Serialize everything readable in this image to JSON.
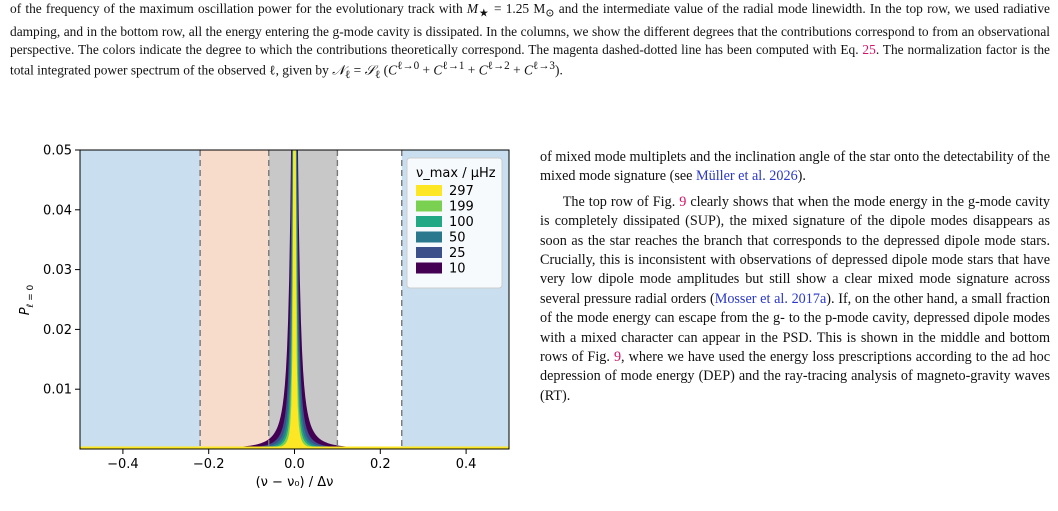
{
  "caption": {
    "line1": "of the frequency of the maximum oscillation power for the evolutionary track with ",
    "mass_sym": "M",
    "mass_eq": " = 1.25 M",
    "line1_tail": " and the intermediate value of the radial mode",
    "rest": "linewidth. In the top row, we used radiative damping, and in the bottom row, all the energy entering the g-mode cavity is dissipated. In the columns, we show the different degrees that the contributions correspond to from an observational perspective. The colors indicate the degree to which the contributions theoretically correspond. The magenta dashed-dotted line has been computed with Eq. ",
    "eq_ref": "25",
    "rest2": ". The normalization factor is the total integrated power spectrum of the observed ℓ, given by ",
    "formula": "N_ℓ = S_ℓ (C^{ℓ→0} + C^{ℓ→1} + C^{ℓ→2} + C^{ℓ→3})."
  },
  "chart_data": {
    "type": "area",
    "xlabel": "(ν − ν₀) / Δν",
    "ylabel": "P_{ℓ=0}",
    "xlim": [
      -0.5,
      0.5
    ],
    "ylim": [
      0,
      0.05
    ],
    "xticks": [
      -0.4,
      -0.2,
      0.0,
      0.2,
      0.4
    ],
    "xtick_labels": [
      "−0.4",
      "−0.2",
      "0.0",
      "0.2",
      "0.4"
    ],
    "yticks": [
      0.01,
      0.02,
      0.03,
      0.04,
      0.05
    ],
    "ytick_labels": [
      "0.01",
      "0.02",
      "0.03",
      "0.04",
      "0.05"
    ],
    "grid": false,
    "legend_title": "ν_max / μHz",
    "legend_position": "top-right",
    "series": [
      {
        "name": "10",
        "color": "#440154",
        "half_width": 0.0075
      },
      {
        "name": "25",
        "color": "#3b4f8a",
        "half_width": 0.0035
      },
      {
        "name": "50",
        "color": "#2a788e",
        "half_width": 0.0022
      },
      {
        "name": "100",
        "color": "#22a884",
        "half_width": 0.0014
      },
      {
        "name": "199",
        "color": "#7ad151",
        "half_width": 0.0009
      },
      {
        "name": "297",
        "color": "#fde725",
        "half_width": 0.0005
      }
    ],
    "regions": [
      {
        "x0": -0.5,
        "x1": -0.22,
        "color": "#c9dff0"
      },
      {
        "x0": -0.22,
        "x1": -0.06,
        "color": "#f7dccb"
      },
      {
        "x0": -0.06,
        "x1": 0.1,
        "color": "#c8c8c8"
      },
      {
        "x0": 0.1,
        "x1": 0.25,
        "color": "#ffffff"
      },
      {
        "x0": 0.25,
        "x1": 0.5,
        "color": "#c9dff0"
      }
    ],
    "dashed_lines": [
      -0.22,
      -0.06,
      0.1,
      0.25
    ]
  },
  "body": {
    "p1_a": "of mixed mode multiplets and the inclination angle of the star onto the detectability of the mixed mode signature (see ",
    "p1_cite": "Müller et al. 2026",
    "p1_b": ").",
    "p2_a": "The top row of Fig. ",
    "p2_fig1": "9",
    "p2_b": " clearly shows that when the mode energy in the g-mode cavity is completely dissipated (SUP), the mixed signature of the dipole modes disappears as soon as the star reaches the branch that corresponds to the depressed dipole mode stars. Crucially, this is inconsistent with observations of depressed dipole mode stars that have very low dipole mode amplitudes but still show a clear mixed mode signature across several pressure radial orders (",
    "p2_cite": "Mosser et al. 2017a",
    "p2_c": "). If, on the other hand, a small fraction of the mode energy can escape from the g- to the p-mode cavity, depressed dipole modes with a mixed character can appear in the PSD. This is shown in the middle and bottom rows of Fig. ",
    "p2_fig2": "9",
    "p2_d": ", where we have used the energy loss prescriptions according to the ad hoc depression of mode energy (DEP) and the ray-tracing analysis of magneto-gravity waves (RT)."
  }
}
